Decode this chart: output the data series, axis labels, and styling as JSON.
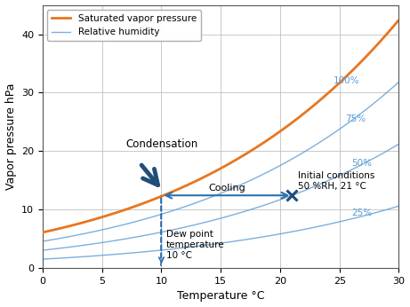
{
  "xlabel": "Temperature °C",
  "ylabel": "Vapor pressure hPa",
  "xlim": [
    0,
    30
  ],
  "ylim": [
    0,
    45
  ],
  "xticks": [
    0,
    5,
    10,
    15,
    20,
    25,
    30
  ],
  "yticks": [
    0,
    10,
    20,
    30,
    40
  ],
  "saturated_color": "#e8761e",
  "rh_color": "#5b9bd5",
  "rh_levels": [
    1.0,
    0.75,
    0.5,
    0.25
  ],
  "rh_labels": [
    "100%",
    "75%",
    "50%",
    "25%"
  ],
  "annotation_condensation": "Condensation",
  "annotation_cooling": "Cooling",
  "annotation_dew": "Dew point\ntemperature\n10 °C",
  "annotation_initial": "Initial conditions\n50 %RH, 21 °C",
  "initial_x": 21,
  "dew_x": 10,
  "background_color": "#ffffff",
  "grid_color": "#c0c0c0",
  "legend_svp": "Saturated vapor pressure",
  "legend_rh": "Relative humidity",
  "dark_blue": "#1f4e79",
  "arrow_blue": "#2e6fad"
}
